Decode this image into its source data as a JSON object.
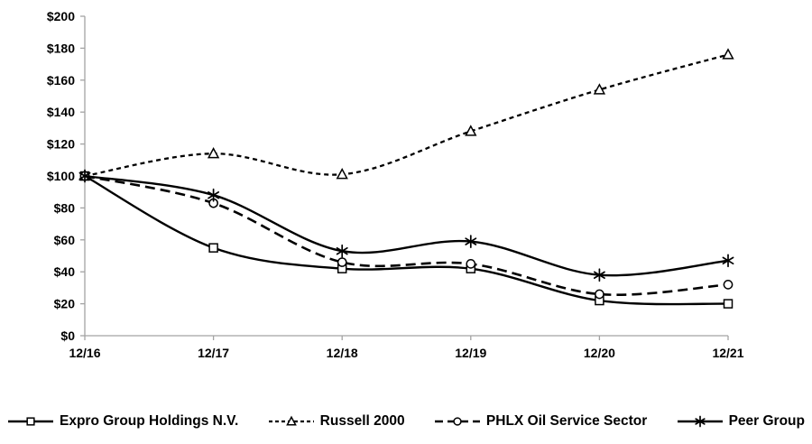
{
  "chart_data": {
    "type": "line",
    "title": "",
    "xlabel": "",
    "ylabel": "",
    "categories": [
      "12/16",
      "12/17",
      "12/18",
      "12/19",
      "12/20",
      "12/21"
    ],
    "series": [
      {
        "name": "Expro Group Holdings N.V.",
        "values": [
          100,
          55,
          42,
          42,
          22,
          20
        ],
        "line": "solid",
        "marker": "square"
      },
      {
        "name": "Russell 2000",
        "values": [
          100,
          114,
          101,
          128,
          154,
          176
        ],
        "line": "dotted",
        "marker": "triangle"
      },
      {
        "name": "PHLX Oil Service Sector",
        "values": [
          100,
          83,
          46,
          45,
          26,
          32
        ],
        "line": "dashed",
        "marker": "circle"
      },
      {
        "name": "Peer Group",
        "values": [
          100,
          88,
          53,
          59,
          38,
          47
        ],
        "line": "solid",
        "marker": "asterisk"
      }
    ],
    "ylim": [
      0,
      200
    ],
    "y_tick_step": 20,
    "y_tick_labels": [
      "$0",
      "$20",
      "$40",
      "$60",
      "$80",
      "$100",
      "$120",
      "$140",
      "$160",
      "$180",
      "$200"
    ],
    "x_tick_labels": [
      "12/16",
      "12/17",
      "12/18",
      "12/19",
      "12/20",
      "12/21"
    ],
    "grid": false,
    "smoothed_lines": true,
    "legend_position": "bottom",
    "colors": {
      "line": "#000000",
      "axis": "#a3a3a3",
      "text": "#000000",
      "marker_fill": "#ffffff",
      "background": "#ffffff"
    }
  }
}
